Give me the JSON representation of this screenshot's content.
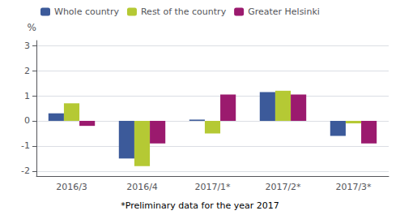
{
  "chart_data": {
    "type": "bar",
    "categories": [
      "2016/3",
      "2016/4",
      "2017/1*",
      "2017/2*",
      "2017/3*"
    ],
    "series": [
      {
        "name": "Whole country",
        "color": "#3c5a9a",
        "values": [
          0.3,
          -1.5,
          0.05,
          1.15,
          -0.6
        ]
      },
      {
        "name": "Rest of the country",
        "color": "#b5c934",
        "values": [
          0.7,
          -1.8,
          -0.5,
          1.2,
          -0.1
        ]
      },
      {
        "name": "Greater Helsinki",
        "color": "#9b1a6e",
        "values": [
          -0.2,
          -0.9,
          1.05,
          1.05,
          -0.9
        ]
      }
    ],
    "ylabel": "%",
    "annotations": [
      "*Preliminary data for the year 2017"
    ],
    "ylim": [
      -2.2,
      3.2
    ],
    "yticks": [
      -2,
      -1,
      0,
      1,
      2,
      3
    ],
    "grid": true,
    "legend": "upper left"
  }
}
